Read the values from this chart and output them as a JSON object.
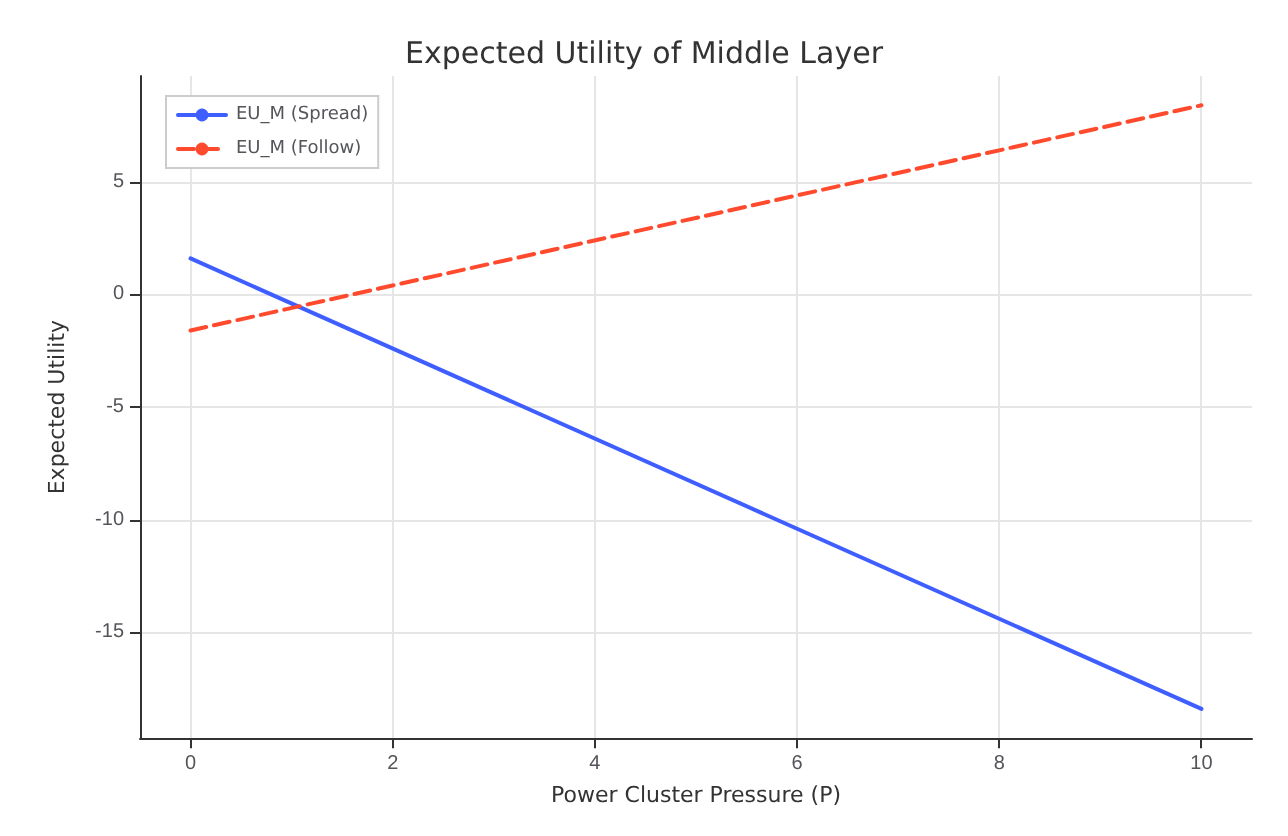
{
  "chart_data": {
    "type": "line",
    "title": "Expected Utility of Middle Layer",
    "xlabel": "Power Cluster Pressure (P)",
    "ylabel": "Expected Utility",
    "x": [
      0,
      10
    ],
    "series": [
      {
        "name": "EU_M (Spread)",
        "color": "#3f5eff",
        "values": [
          1.6,
          -18.4
        ],
        "line_style": "solid"
      },
      {
        "name": "EU_M (Follow)",
        "color": "#ff4a2e",
        "values": [
          -1.6,
          8.4
        ],
        "line_style": "dashed"
      }
    ],
    "xlim": [
      -0.5,
      10.5
    ],
    "xticks": [
      0,
      2,
      4,
      6,
      8,
      10
    ],
    "ylim": [
      -19.7,
      9.7
    ],
    "yticks": [
      -15,
      -10,
      -5,
      0,
      5
    ],
    "grid": true,
    "legend": "top left",
    "marker": "none"
  }
}
